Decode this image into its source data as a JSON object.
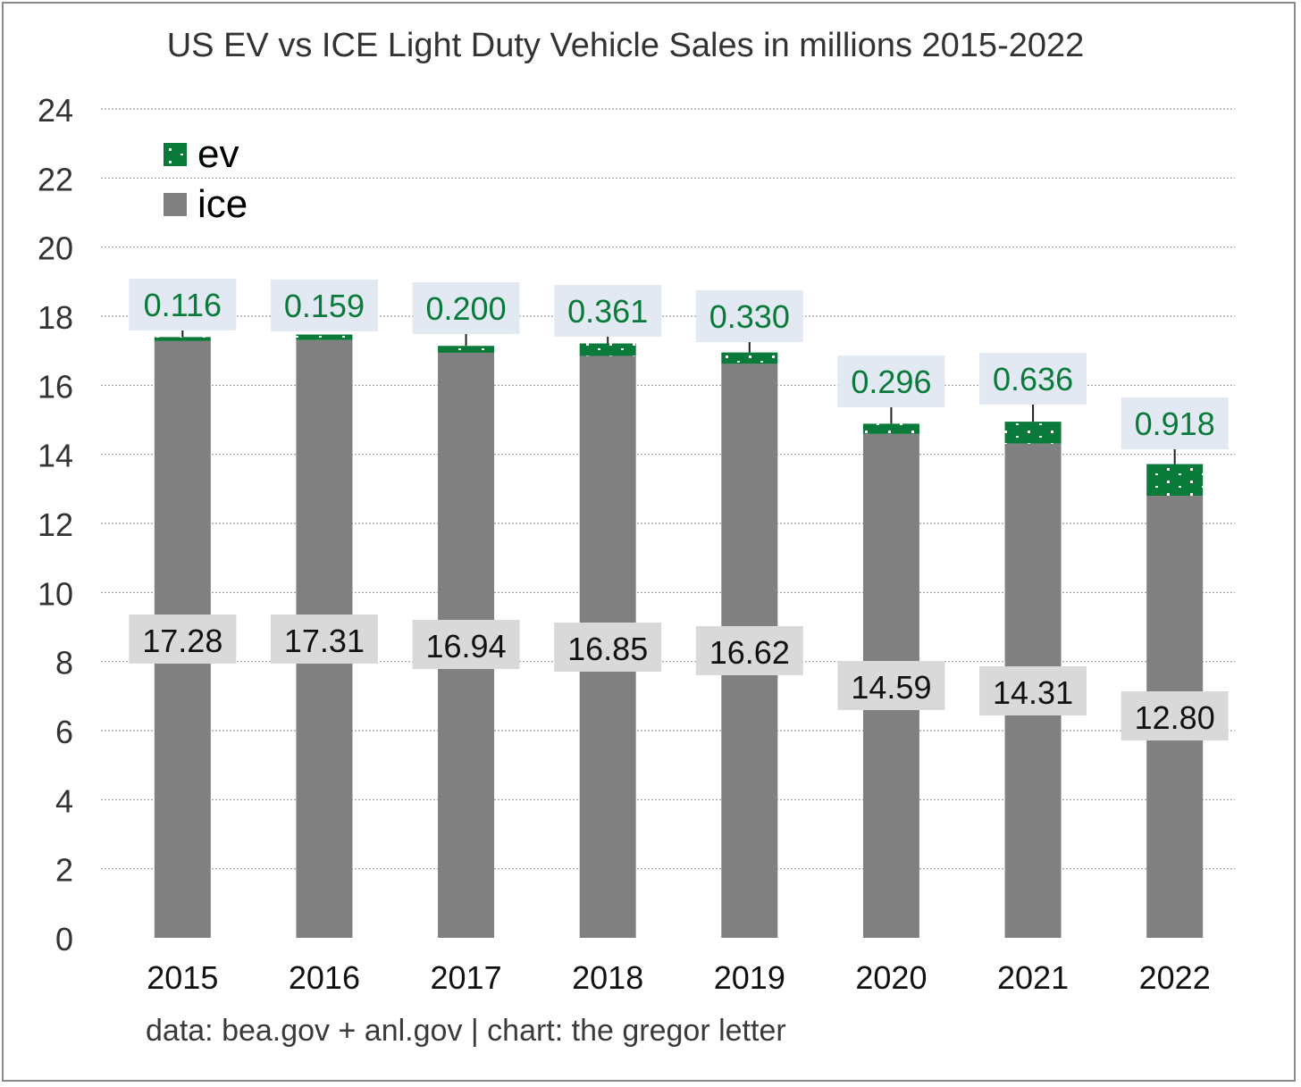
{
  "colors": {
    "ev": "#0a7a3a",
    "ice": "#808080",
    "ev_label": "#0a7a3a",
    "ev_label_bg": "#e2e9f2",
    "ice_label_bg": "#d9d9d9",
    "grid": "#9a9a9a"
  },
  "chart_data": {
    "type": "bar",
    "stacked": true,
    "title": "US EV vs ICE Light Duty Vehicle Sales in millions 2015-2022",
    "source": "data: bea.gov + anl.gov | chart: the gregor letter",
    "xlabel": "",
    "ylabel": "",
    "categories": [
      "2015",
      "2016",
      "2017",
      "2018",
      "2019",
      "2020",
      "2021",
      "2022"
    ],
    "ylim": [
      0,
      24
    ],
    "yticks": [
      "0",
      "2",
      "4",
      "6",
      "8",
      "10",
      "12",
      "14",
      "16",
      "18",
      "20",
      "22",
      "24"
    ],
    "grid": true,
    "legend_position": "top-left",
    "series": [
      {
        "name": "ice",
        "values": [
          17.28,
          17.31,
          16.94,
          16.85,
          16.62,
          14.59,
          14.31,
          12.8
        ],
        "labels": [
          "17.28",
          "17.31",
          "16.94",
          "16.85",
          "16.62",
          "14.59",
          "14.31",
          "12.80"
        ]
      },
      {
        "name": "ev",
        "values": [
          0.116,
          0.159,
          0.2,
          0.361,
          0.33,
          0.296,
          0.636,
          0.918
        ],
        "labels": [
          "0.116",
          "0.159",
          "0.200",
          "0.361",
          "0.330",
          "0.296",
          "0.636",
          "0.918"
        ]
      }
    ]
  }
}
